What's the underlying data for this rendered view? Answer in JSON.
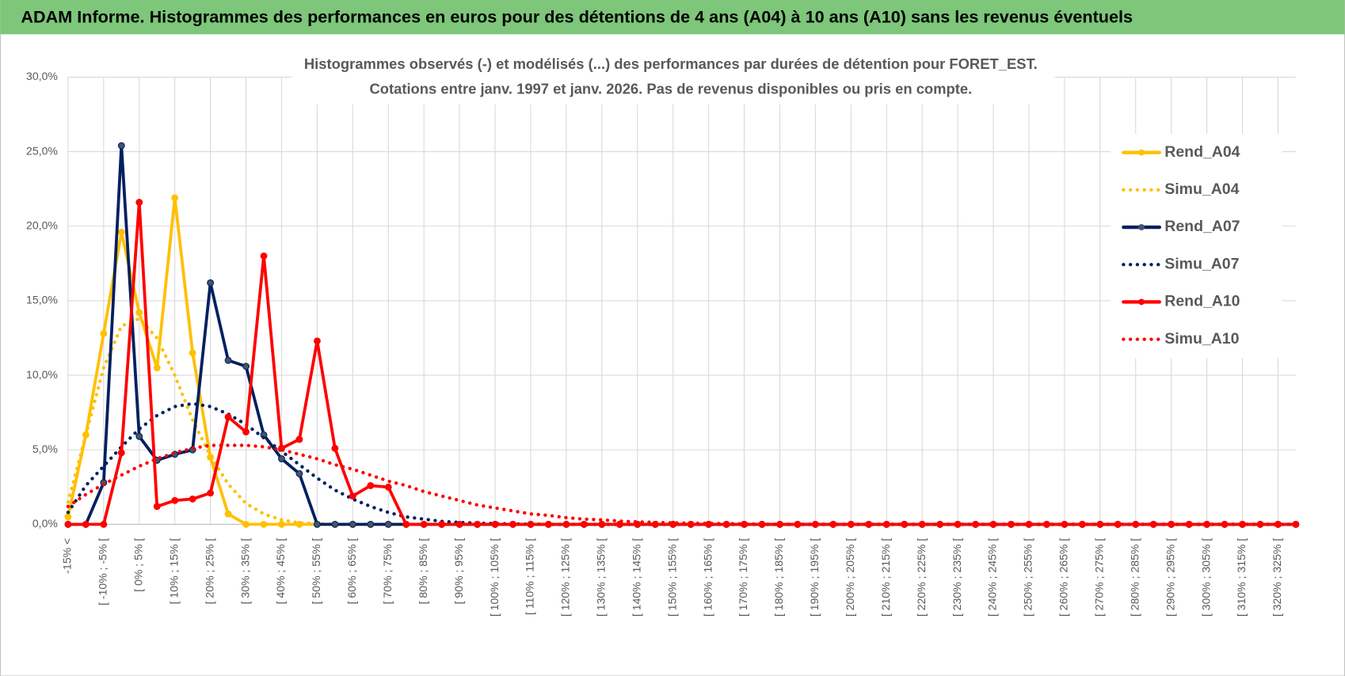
{
  "header": {
    "title": "ADAM Informe. Histogrammes des performances en euros pour des détentions de 4 ans (A04) à 10 ans (A10) sans les revenus éventuels"
  },
  "chart_data": {
    "type": "line",
    "title": "Histogrammes observés (-) et modélisés (...) des performances par durées de détention pour FORET_EST.",
    "subtitle": "Cotations entre janv. 1997 et janv. 2026. Pas de revenus disponibles ou pris en compte.",
    "categories": [
      "-15% <",
      null,
      "[ -10% ; -5% [",
      null,
      "[ 0% ; 5% [",
      null,
      "[ 10% ; 15% [",
      null,
      "[ 20% ; 25% [",
      null,
      "[ 30% ; 35% [",
      null,
      "[ 40% ; 45% [",
      null,
      "[ 50% ; 55% [",
      null,
      "[ 60% ; 65% [",
      null,
      "[ 70% ; 75% [",
      null,
      "[ 80% ; 85% [",
      null,
      "[ 90% ; 95% [",
      null,
      "[ 100% ; 105% [",
      null,
      "[ 110% ; 115% [",
      null,
      "[ 120% ; 125% [",
      null,
      "[ 130% ; 135% [",
      null,
      "[ 140% ; 145% [",
      null,
      "[ 150% ; 155% [",
      null,
      "[ 160% ; 165% [",
      null,
      "[ 170% ; 175% [",
      null,
      "[ 180% ; 185% [",
      null,
      "[ 190% ; 195% [",
      null,
      "[ 200% ; 205% [",
      null,
      "[ 210% ; 215% [",
      null,
      "[ 220% ; 225% [",
      null,
      "[ 230% ; 235% [",
      null,
      "[ 240% ; 245% [",
      null,
      "[ 250% ; 255% [",
      null,
      "[ 260% ; 265% [",
      null,
      "[ 270% ; 275% [",
      null,
      "[ 280% ; 285% [",
      null,
      "[ 290% ; 295% [",
      null,
      "[ 300% ; 305% [",
      null,
      "[ 310% ; 315% [",
      null,
      "[ 320% ; 325% [",
      null
    ],
    "series": [
      {
        "name": "Rend_A04",
        "color": "#FFC000",
        "style": "solid",
        "markers": true,
        "values": [
          0.5,
          6.0,
          12.8,
          19.6,
          14.2,
          10.5,
          21.9,
          11.5,
          4.5,
          0.7,
          0,
          0,
          0,
          0,
          0,
          0,
          0,
          0,
          0,
          0,
          0,
          0,
          0,
          0,
          0,
          0,
          0,
          0,
          0,
          0,
          0,
          0,
          0,
          0,
          0,
          0,
          0,
          0,
          0,
          0,
          0,
          0,
          0,
          0,
          0,
          0,
          0,
          0,
          0,
          0,
          0,
          0,
          0,
          0,
          0,
          0,
          0,
          0,
          0,
          0,
          0,
          0,
          0,
          0,
          0,
          0,
          0,
          0,
          0,
          0
        ]
      },
      {
        "name": "Simu_A04",
        "color": "#FFC000",
        "style": "dotted",
        "markers": false,
        "values": [
          1.5,
          6.0,
          10.5,
          13.3,
          13.8,
          12.5,
          10.0,
          7.0,
          4.6,
          2.7,
          1.4,
          0.7,
          0.3,
          0.1,
          0.05,
          0,
          0,
          0,
          0,
          0,
          0,
          0,
          0,
          0,
          0,
          0,
          0,
          0,
          0,
          0,
          0,
          0,
          0,
          0,
          0,
          0,
          0,
          0,
          0,
          0,
          0,
          0,
          0,
          0,
          0,
          0,
          0,
          0,
          0,
          0,
          0,
          0,
          0,
          0,
          0,
          0,
          0,
          0,
          0,
          0,
          0,
          0,
          0,
          0,
          0,
          0,
          0,
          0,
          0,
          0
        ]
      },
      {
        "name": "Rend_A07",
        "color": "#002060",
        "style": "solid",
        "markers": true,
        "values": [
          0,
          0,
          2.8,
          25.4,
          5.9,
          4.3,
          4.7,
          5.0,
          16.2,
          11.0,
          10.6,
          6.0,
          4.4,
          3.4,
          0,
          0,
          0,
          0,
          0,
          0,
          0,
          0,
          0,
          0,
          0,
          0,
          0,
          0,
          0,
          0,
          0,
          0,
          0,
          0,
          0,
          0,
          0,
          0,
          0,
          0,
          0,
          0,
          0,
          0,
          0,
          0,
          0,
          0,
          0,
          0,
          0,
          0,
          0,
          0,
          0,
          0,
          0,
          0,
          0,
          0,
          0,
          0,
          0,
          0,
          0,
          0,
          0,
          0,
          0,
          0
        ]
      },
      {
        "name": "Simu_A07",
        "color": "#002060",
        "style": "dotted",
        "markers": false,
        "values": [
          0.8,
          2.6,
          3.9,
          5.2,
          6.4,
          7.3,
          7.9,
          8.1,
          7.9,
          7.4,
          6.7,
          5.8,
          4.9,
          4.0,
          3.1,
          2.3,
          1.7,
          1.2,
          0.8,
          0.5,
          0.35,
          0.2,
          0.13,
          0.08,
          0.05,
          0.03,
          0.02,
          0,
          0,
          0,
          0,
          0,
          0,
          0,
          0,
          0,
          0,
          0,
          0,
          0,
          0,
          0,
          0,
          0,
          0,
          0,
          0,
          0,
          0,
          0,
          0,
          0,
          0,
          0,
          0,
          0,
          0,
          0,
          0,
          0,
          0,
          0,
          0,
          0,
          0,
          0,
          0,
          0,
          0,
          0
        ]
      },
      {
        "name": "Rend_A10",
        "color": "#FF0000",
        "style": "solid",
        "markers": true,
        "values": [
          0,
          0,
          0,
          4.8,
          21.6,
          1.2,
          1.6,
          1.7,
          2.1,
          7.2,
          6.2,
          18.0,
          5.1,
          5.7,
          12.3,
          5.1,
          1.9,
          2.6,
          2.5,
          0,
          0,
          0,
          0,
          0,
          0,
          0,
          0,
          0,
          0,
          0,
          0,
          0,
          0,
          0,
          0,
          0,
          0,
          0,
          0,
          0,
          0,
          0,
          0,
          0,
          0,
          0,
          0,
          0,
          0,
          0,
          0,
          0,
          0,
          0,
          0,
          0,
          0,
          0,
          0,
          0,
          0,
          0,
          0,
          0,
          0,
          0,
          0,
          0,
          0,
          0
        ]
      },
      {
        "name": "Simu_A10",
        "color": "#FF0000",
        "style": "dotted",
        "markers": false,
        "values": [
          1.2,
          2.0,
          2.7,
          3.3,
          3.9,
          4.4,
          4.8,
          5.1,
          5.3,
          5.3,
          5.3,
          5.2,
          5.0,
          4.7,
          4.4,
          4.0,
          3.7,
          3.3,
          2.9,
          2.6,
          2.2,
          1.9,
          1.6,
          1.3,
          1.1,
          0.9,
          0.7,
          0.6,
          0.45,
          0.35,
          0.3,
          0.22,
          0.17,
          0.13,
          0.1,
          0.08,
          0.06,
          0.05,
          0.04,
          0,
          0,
          0,
          0,
          0,
          0,
          0,
          0,
          0,
          0,
          0,
          0,
          0,
          0,
          0,
          0,
          0,
          0,
          0,
          0,
          0,
          0,
          0,
          0,
          0,
          0,
          0,
          0,
          0,
          0,
          0
        ]
      }
    ],
    "ylim": [
      0,
      30
    ],
    "yticks": [
      {
        "value": 0,
        "label": "0,0%"
      },
      {
        "value": 5,
        "label": "5,0%"
      },
      {
        "value": 10,
        "label": "10,0%"
      },
      {
        "value": 15,
        "label": "15,0%"
      },
      {
        "value": 20,
        "label": "20,0%"
      },
      {
        "value": 25,
        "label": "25,0%"
      },
      {
        "value": 30,
        "label": "30,0%"
      }
    ],
    "grid": true,
    "legend": "right"
  }
}
